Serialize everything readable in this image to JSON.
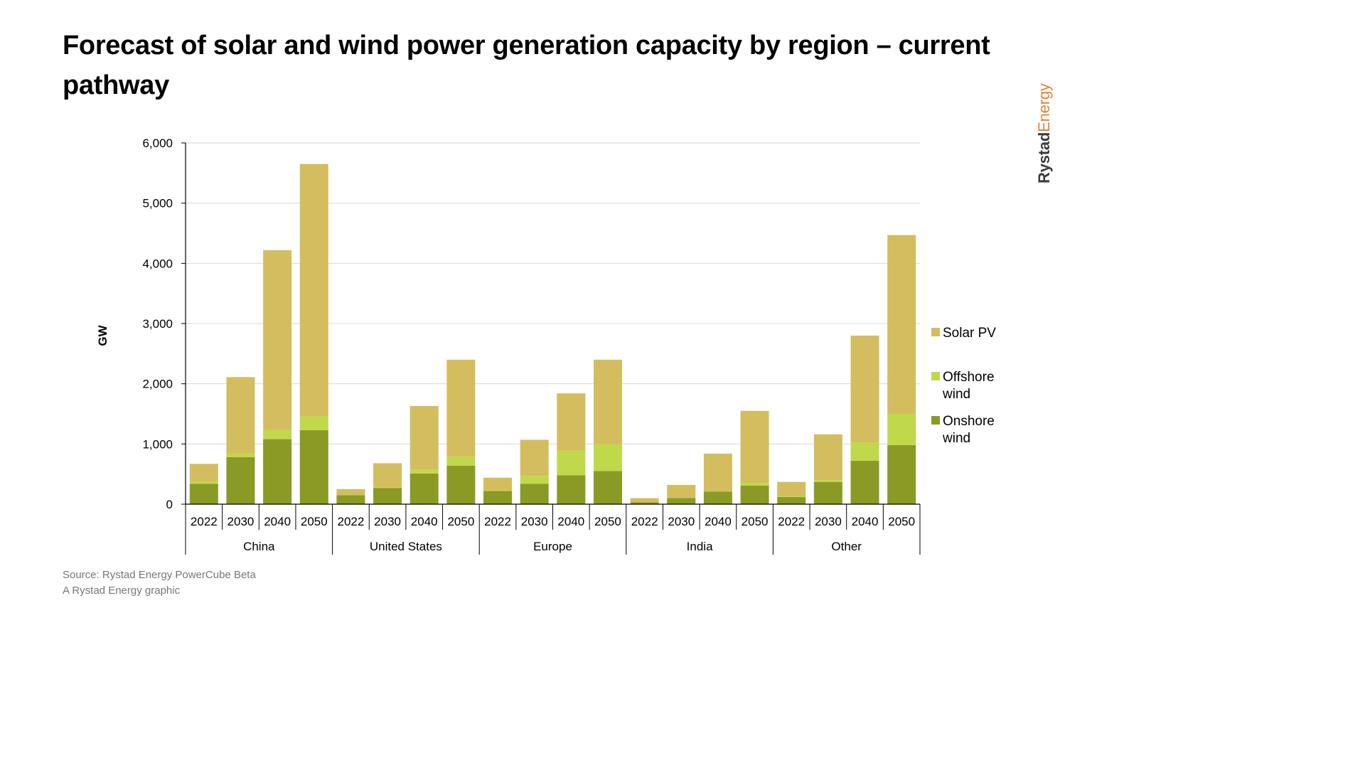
{
  "header": {
    "title": "Forecast of solar and wind power generation capacity by region – current pathway",
    "brand_part1": "Rystad",
    "brand_part2": "Energy"
  },
  "footer": {
    "source": "Source: Rystad Energy PowerCube Beta",
    "credit": "A Rystad Energy graphic"
  },
  "colors": {
    "solar_pv": "#d4bd5e",
    "offshore_wind": "#c0d94a",
    "onshore_wind": "#8a9a24",
    "gridline": "#d9d9d9",
    "brand_orange": "#e0843a"
  },
  "chart_data": {
    "type": "bar",
    "stacked": true,
    "title": "",
    "xlabel": "",
    "ylabel": "GW",
    "ylim": [
      0,
      6000
    ],
    "yticks": [
      0,
      1000,
      2000,
      3000,
      4000,
      5000,
      6000
    ],
    "ytick_labels": [
      "0",
      "1,000",
      "2,000",
      "3,000",
      "4,000",
      "5,000",
      "6,000"
    ],
    "grid": true,
    "legend_position": "right",
    "groups": [
      "China",
      "United States",
      "Europe",
      "India",
      "Other"
    ],
    "years": [
      "2022",
      "2030",
      "2040",
      "2050"
    ],
    "series": [
      {
        "name": "Onshore wind",
        "color": "#8a9a24",
        "values": [
          340,
          780,
          1080,
          1230,
          150,
          270,
          510,
          640,
          220,
          340,
          480,
          550,
          30,
          100,
          210,
          310,
          120,
          370,
          720,
          980
        ]
      },
      {
        "name": "Offshore wind",
        "color": "#c0d94a",
        "values": [
          30,
          60,
          150,
          230,
          0,
          10,
          60,
          150,
          10,
          130,
          410,
          450,
          0,
          0,
          0,
          50,
          10,
          30,
          300,
          510
        ]
      },
      {
        "name": "Solar PV",
        "color": "#d4bd5e",
        "values": [
          300,
          1270,
          2990,
          4190,
          100,
          400,
          1060,
          1610,
          210,
          600,
          950,
          1400,
          70,
          220,
          630,
          1190,
          240,
          760,
          1780,
          2980
        ]
      }
    ],
    "legend": [
      {
        "name": "Solar PV",
        "color": "#d4bd5e"
      },
      {
        "name": "Offshore wind",
        "color": "#c0d94a",
        "lines": [
          "Offshore",
          "wind"
        ]
      },
      {
        "name": "Onshore wind",
        "color": "#8a9a24",
        "lines": [
          "Onshore",
          "wind"
        ]
      }
    ]
  }
}
